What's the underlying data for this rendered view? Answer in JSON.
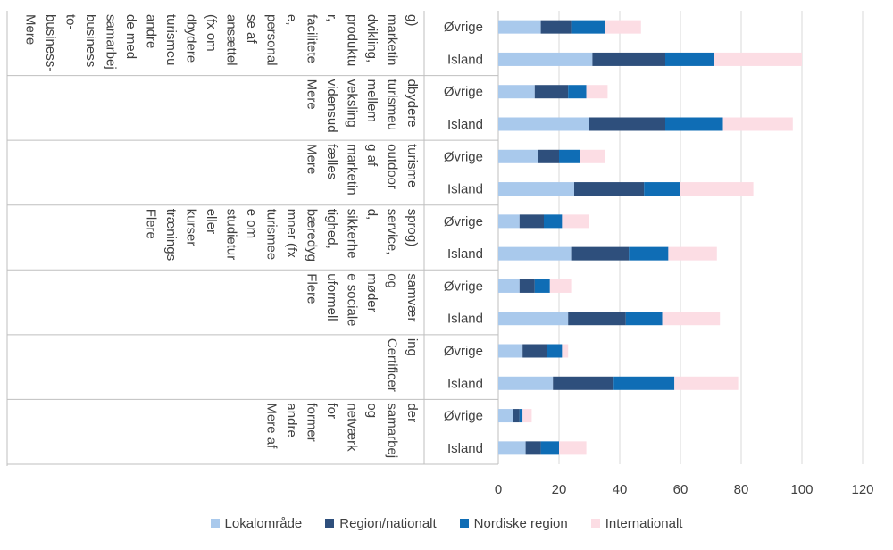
{
  "chart_data": {
    "type": "bar",
    "orientation": "horizontal",
    "stacked": true,
    "groups": [
      {
        "lines": [
          "Mere",
          "business-",
          "to-",
          "business",
          "samarbej",
          "de med",
          "andre",
          "turismeu",
          "dbydere",
          "(fx om",
          "ansættel",
          "se af",
          "personal",
          "e,",
          "facilitete",
          "r,",
          "produktu",
          "dvikling,",
          "marketin",
          "g)"
        ]
      },
      {
        "lines": [
          "Mere",
          "vidensud",
          "veksling",
          "mellem",
          "turismeu",
          "dbydere"
        ]
      },
      {
        "lines": [
          "Mere",
          "fælles",
          "marketin",
          "g af",
          "outdoor",
          "turisme"
        ]
      },
      {
        "lines": [
          "Flere",
          "trænings",
          "kurser",
          "eller",
          "studietur",
          "e om",
          "turismee",
          "mner (fx",
          "bæredyg",
          "tighed,",
          "sikkerhe",
          "d,",
          "service,",
          "sprog)"
        ]
      },
      {
        "lines": [
          "Flere",
          "uformell",
          "e sociale",
          "møder",
          "og",
          "samvær"
        ]
      },
      {
        "lines": [
          "Certificer",
          "ing"
        ]
      },
      {
        "lines": [
          "Mere af",
          "andre",
          "former",
          "for",
          "netværk",
          "og",
          "samarbej",
          "der"
        ]
      }
    ],
    "categories": [
      "Øvrige",
      "Island",
      "Øvrige",
      "Island",
      "Øvrige",
      "Island",
      "Øvrige",
      "Island",
      "Øvrige",
      "Island",
      "Øvrige",
      "Island",
      "Øvrige",
      "Island"
    ],
    "series": [
      {
        "name": "Lokalområde",
        "color": "#a9c9ec",
        "values": [
          14,
          31,
          12,
          30,
          13,
          25,
          7,
          24,
          7,
          23,
          8,
          18,
          5,
          9
        ]
      },
      {
        "name": "Region/nationalt",
        "color": "#2e4f7c",
        "values": [
          10,
          24,
          11,
          25,
          7,
          23,
          8,
          19,
          5,
          19,
          8,
          20,
          2,
          5
        ]
      },
      {
        "name": "Nordiske region",
        "color": "#0f6db5",
        "values": [
          11,
          16,
          6,
          19,
          7,
          12,
          6,
          13,
          5,
          12,
          5,
          20,
          1,
          6
        ]
      },
      {
        "name": "Internationalt",
        "color": "#fcdde4",
        "values": [
          12,
          29,
          7,
          23,
          8,
          24,
          9,
          16,
          7,
          19,
          2,
          21,
          3,
          9
        ]
      }
    ],
    "x_ticks": [
      "0",
      "20",
      "40",
      "60",
      "80",
      "100",
      "120"
    ],
    "xlim": [
      0,
      120
    ],
    "grid": true,
    "legend": "bottom"
  }
}
